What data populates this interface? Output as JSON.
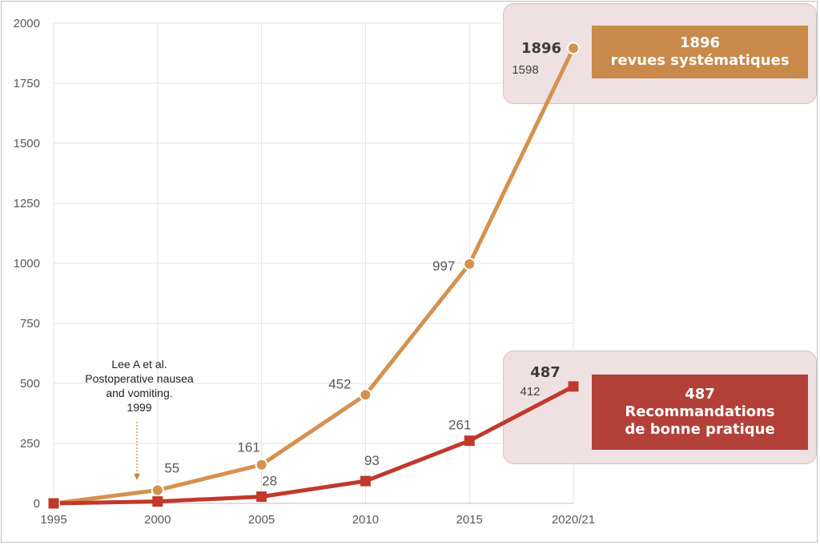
{
  "chart_data": {
    "type": "line",
    "title": "",
    "xlabel": "",
    "ylabel": "",
    "categories": [
      "1995",
      "2000",
      "2005",
      "2010",
      "2015",
      "2020/21"
    ],
    "yticks": [
      "0",
      "250",
      "500",
      "750",
      "1000",
      "1250",
      "1500",
      "1750",
      "2000"
    ],
    "ylim": [
      0,
      2000
    ],
    "grid": true,
    "series": [
      {
        "key": "reviews",
        "color": "#d4924e",
        "marker": "circle",
        "values": [
          0,
          55,
          161,
          452,
          997,
          1896
        ],
        "labels": [
          "",
          "55",
          "161",
          "452",
          "997",
          "1896"
        ]
      },
      {
        "key": "guidelines",
        "color": "#c0392b",
        "marker": "square",
        "values": [
          0,
          8,
          28,
          93,
          261,
          487
        ],
        "labels": [
          "",
          "",
          "28",
          "93",
          "261",
          "487"
        ]
      }
    ],
    "previous_values": {
      "reviews": "1598",
      "guidelines": "412"
    },
    "callouts": {
      "reviews": {
        "count": "1896",
        "text": "revues systématiques",
        "color": "#c8894a"
      },
      "guidelines": {
        "count": "487",
        "line1": "Recommandations",
        "line2": "de bonne pratique",
        "color": "#b3413a"
      }
    },
    "annotation": {
      "lines": [
        "Lee A et al.",
        "Postoperative nausea",
        "and vomiting.",
        "1999"
      ],
      "arrow_color": "#c8894a"
    }
  }
}
